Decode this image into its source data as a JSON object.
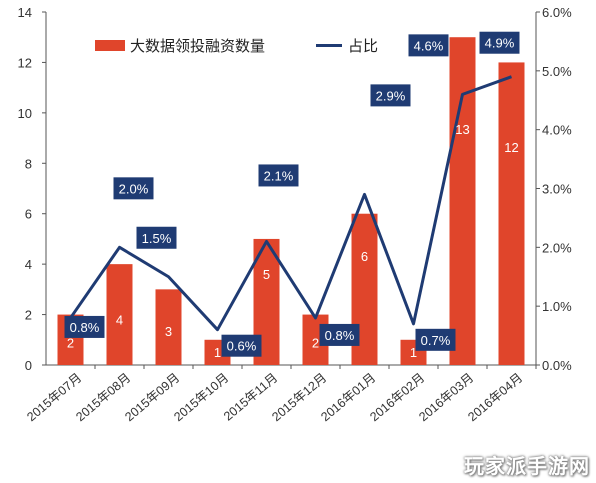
{
  "chart_data": {
    "type": "bar",
    "categories": [
      "2015年07月",
      "2015年08月",
      "2015年09月",
      "2015年10月",
      "2015年11月",
      "2015年12月",
      "2016年01月",
      "2016年02月",
      "2016年03月",
      "2016年04月"
    ],
    "series": [
      {
        "name": "大数据领投融资数量",
        "type": "bar",
        "axis": "left",
        "color": "#e0452b",
        "values": [
          2,
          4,
          3,
          1,
          5,
          2,
          6,
          1,
          13,
          12
        ]
      },
      {
        "name": "占比",
        "type": "line",
        "axis": "right",
        "color": "#1f3b73",
        "values": [
          0.8,
          2.0,
          1.5,
          0.6,
          2.1,
          0.8,
          2.9,
          0.7,
          4.6,
          4.9
        ],
        "labels": [
          "0.8%",
          "2.0%",
          "1.5%",
          "0.6%",
          "2.1%",
          "0.8%",
          "2.9%",
          "0.7%",
          "4.6%",
          "4.9%"
        ]
      }
    ],
    "y_left": {
      "min": 0,
      "max": 14,
      "ticks": [
        "0",
        "2",
        "4",
        "6",
        "8",
        "10",
        "12",
        "14"
      ]
    },
    "y_right": {
      "min": 0,
      "max": 6,
      "ticks": [
        "0.0%",
        "1.0%",
        "2.0%",
        "3.0%",
        "4.0%",
        "5.0%",
        "6.0%"
      ]
    },
    "legend_position": "top",
    "grid": false
  },
  "watermark": "玩家派手游网"
}
